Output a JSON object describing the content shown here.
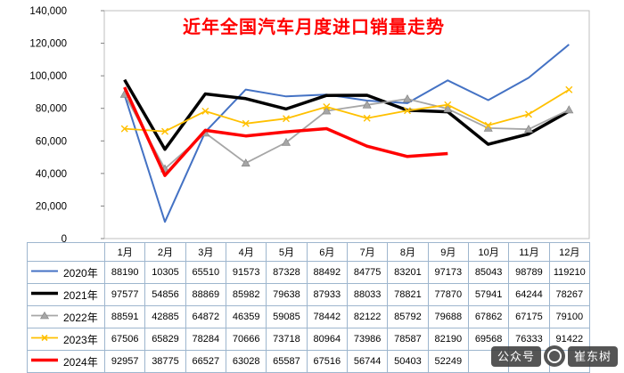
{
  "title": "近年全国汽车月度进口销量走势",
  "watermark": {
    "prefix": "公众号",
    "name": "崔东树"
  },
  "colors": {
    "title": "#FF0000",
    "axis": "#BFBFBF",
    "tick": "#808080",
    "table_border": "#9EB6CE"
  },
  "chart_data": {
    "type": "line",
    "title": "近年全国汽车月度进口销量走势",
    "xlabel": "",
    "ylabel": "",
    "ylim": [
      0,
      140000
    ],
    "ytick_step": 20000,
    "grid": false,
    "legend_position": "table-left",
    "categories": [
      "1月",
      "2月",
      "3月",
      "4月",
      "5月",
      "6月",
      "7月",
      "8月",
      "9月",
      "10月",
      "11月",
      "12月"
    ],
    "series": [
      {
        "name": "2020年",
        "color": "#4472C4",
        "width": 2,
        "marker": "none",
        "values": [
          88190,
          10305,
          65510,
          91573,
          87328,
          88492,
          84775,
          83201,
          97173,
          85043,
          98789,
          119210
        ]
      },
      {
        "name": "2021年",
        "color": "#000000",
        "width": 3.5,
        "marker": "none",
        "values": [
          97577,
          54856,
          88869,
          85982,
          79638,
          87933,
          88033,
          78821,
          77870,
          57941,
          64244,
          78267
        ]
      },
      {
        "name": "2022年",
        "color": "#A6A6A6",
        "width": 1.8,
        "marker": "triangle",
        "values": [
          88591,
          42885,
          64872,
          46359,
          59085,
          78442,
          82122,
          85792,
          79688,
          67862,
          67175,
          79100
        ]
      },
      {
        "name": "2023年",
        "color": "#FFC000",
        "width": 1.8,
        "marker": "x",
        "values": [
          67506,
          65829,
          78284,
          70666,
          73718,
          80964,
          73986,
          78587,
          82190,
          69568,
          76333,
          91422
        ]
      },
      {
        "name": "2024年",
        "color": "#FF0000",
        "width": 3.5,
        "marker": "none",
        "values": [
          92957,
          38775,
          66527,
          63028,
          65587,
          67516,
          56744,
          50403,
          52249
        ]
      }
    ]
  }
}
